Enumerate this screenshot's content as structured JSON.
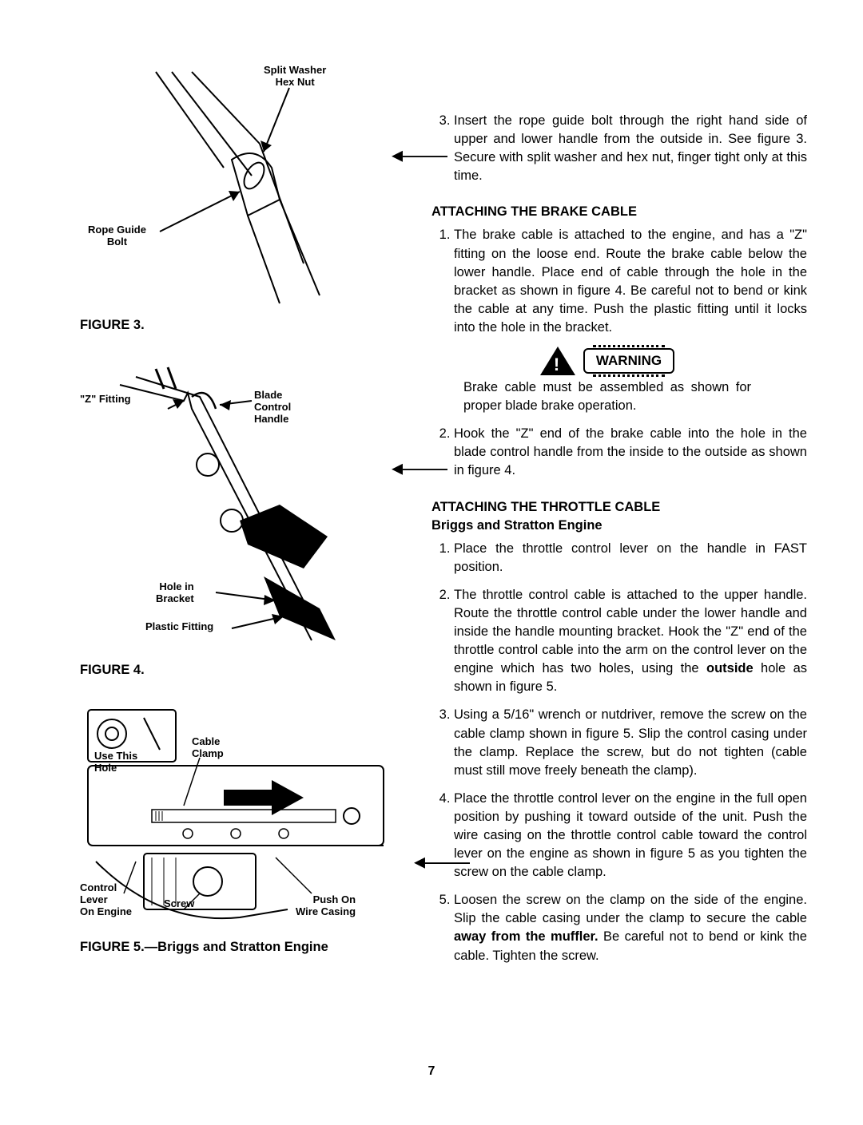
{
  "leftColumn": {
    "figure3": {
      "labels": {
        "splitWasher": "Split Washer\nHex Nut",
        "ropeGuide": "Rope Guide\nBolt"
      },
      "caption": "FIGURE 3."
    },
    "figure4": {
      "labels": {
        "zFitting": "\"Z\" Fitting",
        "bladeControl": "Blade\nControl\nHandle",
        "holeBracket": "Hole in\nBracket",
        "plasticFitting": "Plastic Fitting"
      },
      "caption": "FIGURE 4."
    },
    "figure5": {
      "labels": {
        "useHole": "Use This\nHole",
        "cableClamp": "Cable\nClamp",
        "controlLever": "Control\nLever\nOn Engine",
        "screw": "Screw",
        "pushOn": "Push On\nWire Casing"
      },
      "caption": "FIGURE 5.—Briggs and Stratton Engine"
    }
  },
  "rightColumn": {
    "topItem": "Insert the rope guide bolt through the right hand side of upper and lower handle from the outside in. See figure 3. Secure with split washer and hex nut, finger tight only at this time.",
    "brakeHeading": "ATTACHING THE BRAKE CABLE",
    "brakeItem1": "The brake cable is attached to the engine, and has a \"Z\" fitting on the loose end. Route the brake cable below the lower handle. Place end of cable through the hole in the bracket as shown in figure 4. Be careful not to bend or kink the cable at any time. Push the plastic fitting until it locks into the hole in the bracket.",
    "warningLabel": "WARNING",
    "warningText": "Brake cable must be assembled as shown for proper blade brake operation.",
    "brakeItem2": "Hook the \"Z\" end of the brake cable into the hole in the blade control handle from the inside to the outside as shown in figure 4.",
    "throttleHeading": "ATTACHING THE THROTTLE CABLE",
    "throttleSub": "Briggs and Stratton Engine",
    "throttleItems": [
      "Place the throttle control lever on the handle in FAST position.",
      "The throttle control cable is attached to the upper handle. Route the throttle control cable under the lower handle and inside the handle mounting bracket. Hook the \"Z\" end of the throttle control cable into the arm on the control lever on the engine which has two holes, using the <strong>outside</strong> hole as shown in figure 5.",
      "Using a 5/16\" wrench or nutdriver, remove the screw on the cable clamp shown in figure 5. Slip the control casing under the clamp. Replace the screw, but do not tighten (cable must still move freely beneath the clamp).",
      "Place the throttle control lever on the engine in the full open position by pushing it toward outside of the unit. Push the wire casing on the throttle control cable toward the control lever on the engine as shown in figure 5 as you tighten the screw on the cable clamp.",
      "Loosen the screw on the clamp on the side of the engine. Slip the cable casing under the clamp to secure the cable <strong>away from the muffler.</strong> Be careful not to bend or kink the cable. Tighten the screw."
    ]
  },
  "pageNumber": "7"
}
